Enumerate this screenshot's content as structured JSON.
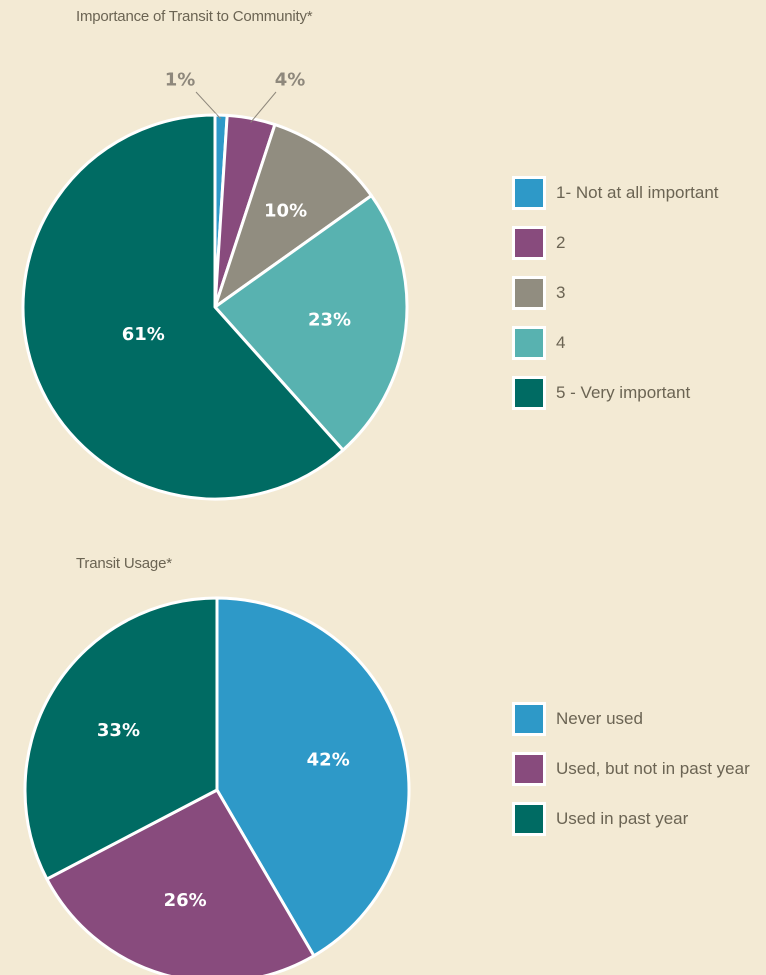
{
  "colors": {
    "background": "#f3ead4",
    "outline": "#ffffff",
    "text": "#6b6453",
    "outside_label": "#8e887c",
    "inside_label": "#ffffff"
  },
  "chart_data": [
    {
      "type": "pie",
      "title": "Importance of Transit to Community*",
      "start_angle_deg": 0,
      "legend_position": "right",
      "slices": [
        {
          "label": "1- Not at all important",
          "value": 1,
          "display": "1%",
          "color": "#2e99c8",
          "label_position": "outside"
        },
        {
          "label": "2",
          "value": 4,
          "display": "4%",
          "color": "#884b7d",
          "label_position": "outside"
        },
        {
          "label": "3",
          "value": 10,
          "display": "10%",
          "color": "#918d80",
          "label_position": "inside"
        },
        {
          "label": "4",
          "value": 23,
          "display": "23%",
          "color": "#58b2b0",
          "label_position": "inside"
        },
        {
          "label": "5 - Very important",
          "value": 61,
          "display": "61%",
          "color": "#006b63",
          "label_position": "inside"
        }
      ]
    },
    {
      "type": "pie",
      "title": "Transit Usage*",
      "start_angle_deg": 0,
      "legend_position": "right",
      "slices": [
        {
          "label": "Never used",
          "value": 42,
          "display": "42%",
          "color": "#2e99c8",
          "label_position": "inside"
        },
        {
          "label": "Used, but not in past year",
          "value": 26,
          "display": "26%",
          "color": "#884b7d",
          "label_position": "inside"
        },
        {
          "label": "Used in past year",
          "value": 33,
          "display": "33%",
          "color": "#006b63",
          "label_position": "inside"
        }
      ]
    }
  ]
}
